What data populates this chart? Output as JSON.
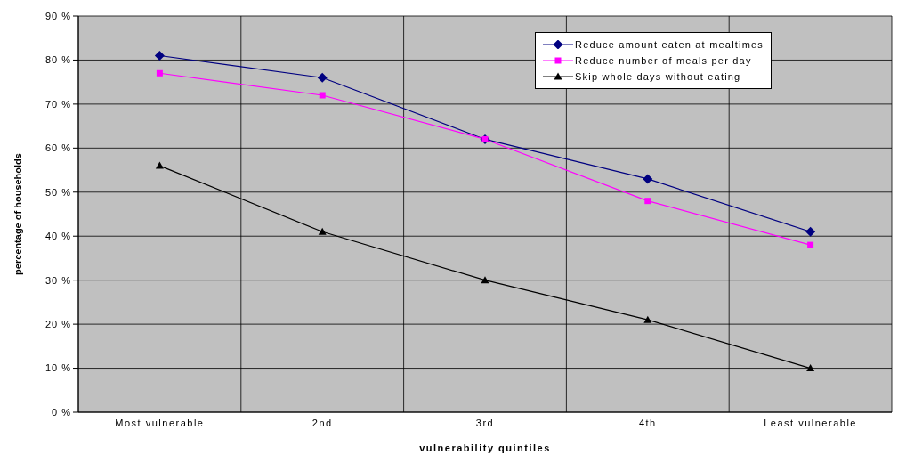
{
  "chart_data": {
    "type": "line",
    "xlabel": "vulnerability quintiles",
    "ylabel": "percentage of households",
    "categories": [
      "Most vulnerable",
      "2nd",
      "3rd",
      "4th",
      "Least vulnerable"
    ],
    "series": [
      {
        "name": "Reduce amount eaten at mealtimes",
        "color": "#000080",
        "marker": "diamond",
        "values": [
          81,
          76,
          62,
          53,
          41
        ]
      },
      {
        "name": "Reduce number of meals per day",
        "color": "#ff00ff",
        "marker": "square",
        "values": [
          77,
          72,
          62,
          48,
          38
        ]
      },
      {
        "name": "Skip whole days without eating",
        "color": "#000000",
        "marker": "triangle",
        "values": [
          56,
          41,
          30,
          21,
          10
        ]
      }
    ],
    "ylim": [
      0,
      90
    ],
    "yticks": [
      {
        "value": 0,
        "label": "0 %"
      },
      {
        "value": 10,
        "label": "10 %"
      },
      {
        "value": 20,
        "label": "20 %"
      },
      {
        "value": 30,
        "label": "30 %"
      },
      {
        "value": 40,
        "label": "40 %"
      },
      {
        "value": 50,
        "label": "50 %"
      },
      {
        "value": 60,
        "label": "60 %"
      },
      {
        "value": 70,
        "label": "70 %"
      },
      {
        "value": 80,
        "label": "80 %"
      },
      {
        "value": 90,
        "label": "90 %"
      }
    ],
    "grid": true,
    "legend": "top right",
    "line_style": "solid"
  }
}
